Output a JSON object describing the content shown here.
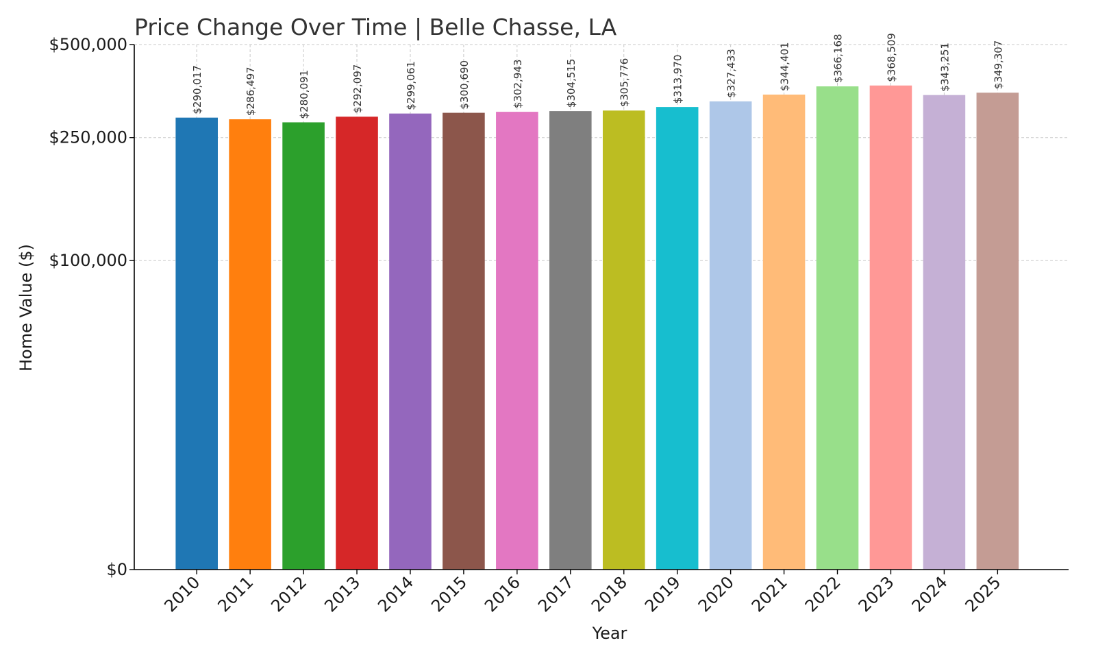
{
  "chart_data": {
    "type": "bar",
    "title": "Price Change Over Time | Belle Chasse, LA",
    "xlabel": "Year",
    "ylabel": "Home Value ($)",
    "ylim": [
      0,
      500000
    ],
    "y_scale": "symlog",
    "yticks": [
      0,
      100000,
      250000,
      500000
    ],
    "ytick_labels": [
      "$0",
      "$100,000",
      "$250,000",
      "$500,000"
    ],
    "grid": true,
    "categories": [
      "2010",
      "2011",
      "2012",
      "2013",
      "2014",
      "2015",
      "2016",
      "2017",
      "2018",
      "2019",
      "2020",
      "2021",
      "2022",
      "2023",
      "2024",
      "2025"
    ],
    "values": [
      290017,
      286497,
      280091,
      292097,
      299061,
      300690,
      302943,
      304515,
      305776,
      313970,
      327433,
      344401,
      366168,
      368509,
      343251,
      349307
    ],
    "value_labels": [
      "$290,017",
      "$286,497",
      "$280,091",
      "$292,097",
      "$299,061",
      "$300,690",
      "$302,943",
      "$304,515",
      "$305,776",
      "$313,970",
      "$327,433",
      "$344,401",
      "$366,168",
      "$368,509",
      "$343,251",
      "$349,307"
    ],
    "colors": [
      "#1f77b4",
      "#ff7f0e",
      "#2ca02c",
      "#d62728",
      "#9467bd",
      "#8c564b",
      "#e377c2",
      "#7f7f7f",
      "#bcbd22",
      "#17becf",
      "#aec7e8",
      "#ffbb78",
      "#98df8a",
      "#ff9896",
      "#c5b0d5",
      "#c49c94"
    ]
  }
}
